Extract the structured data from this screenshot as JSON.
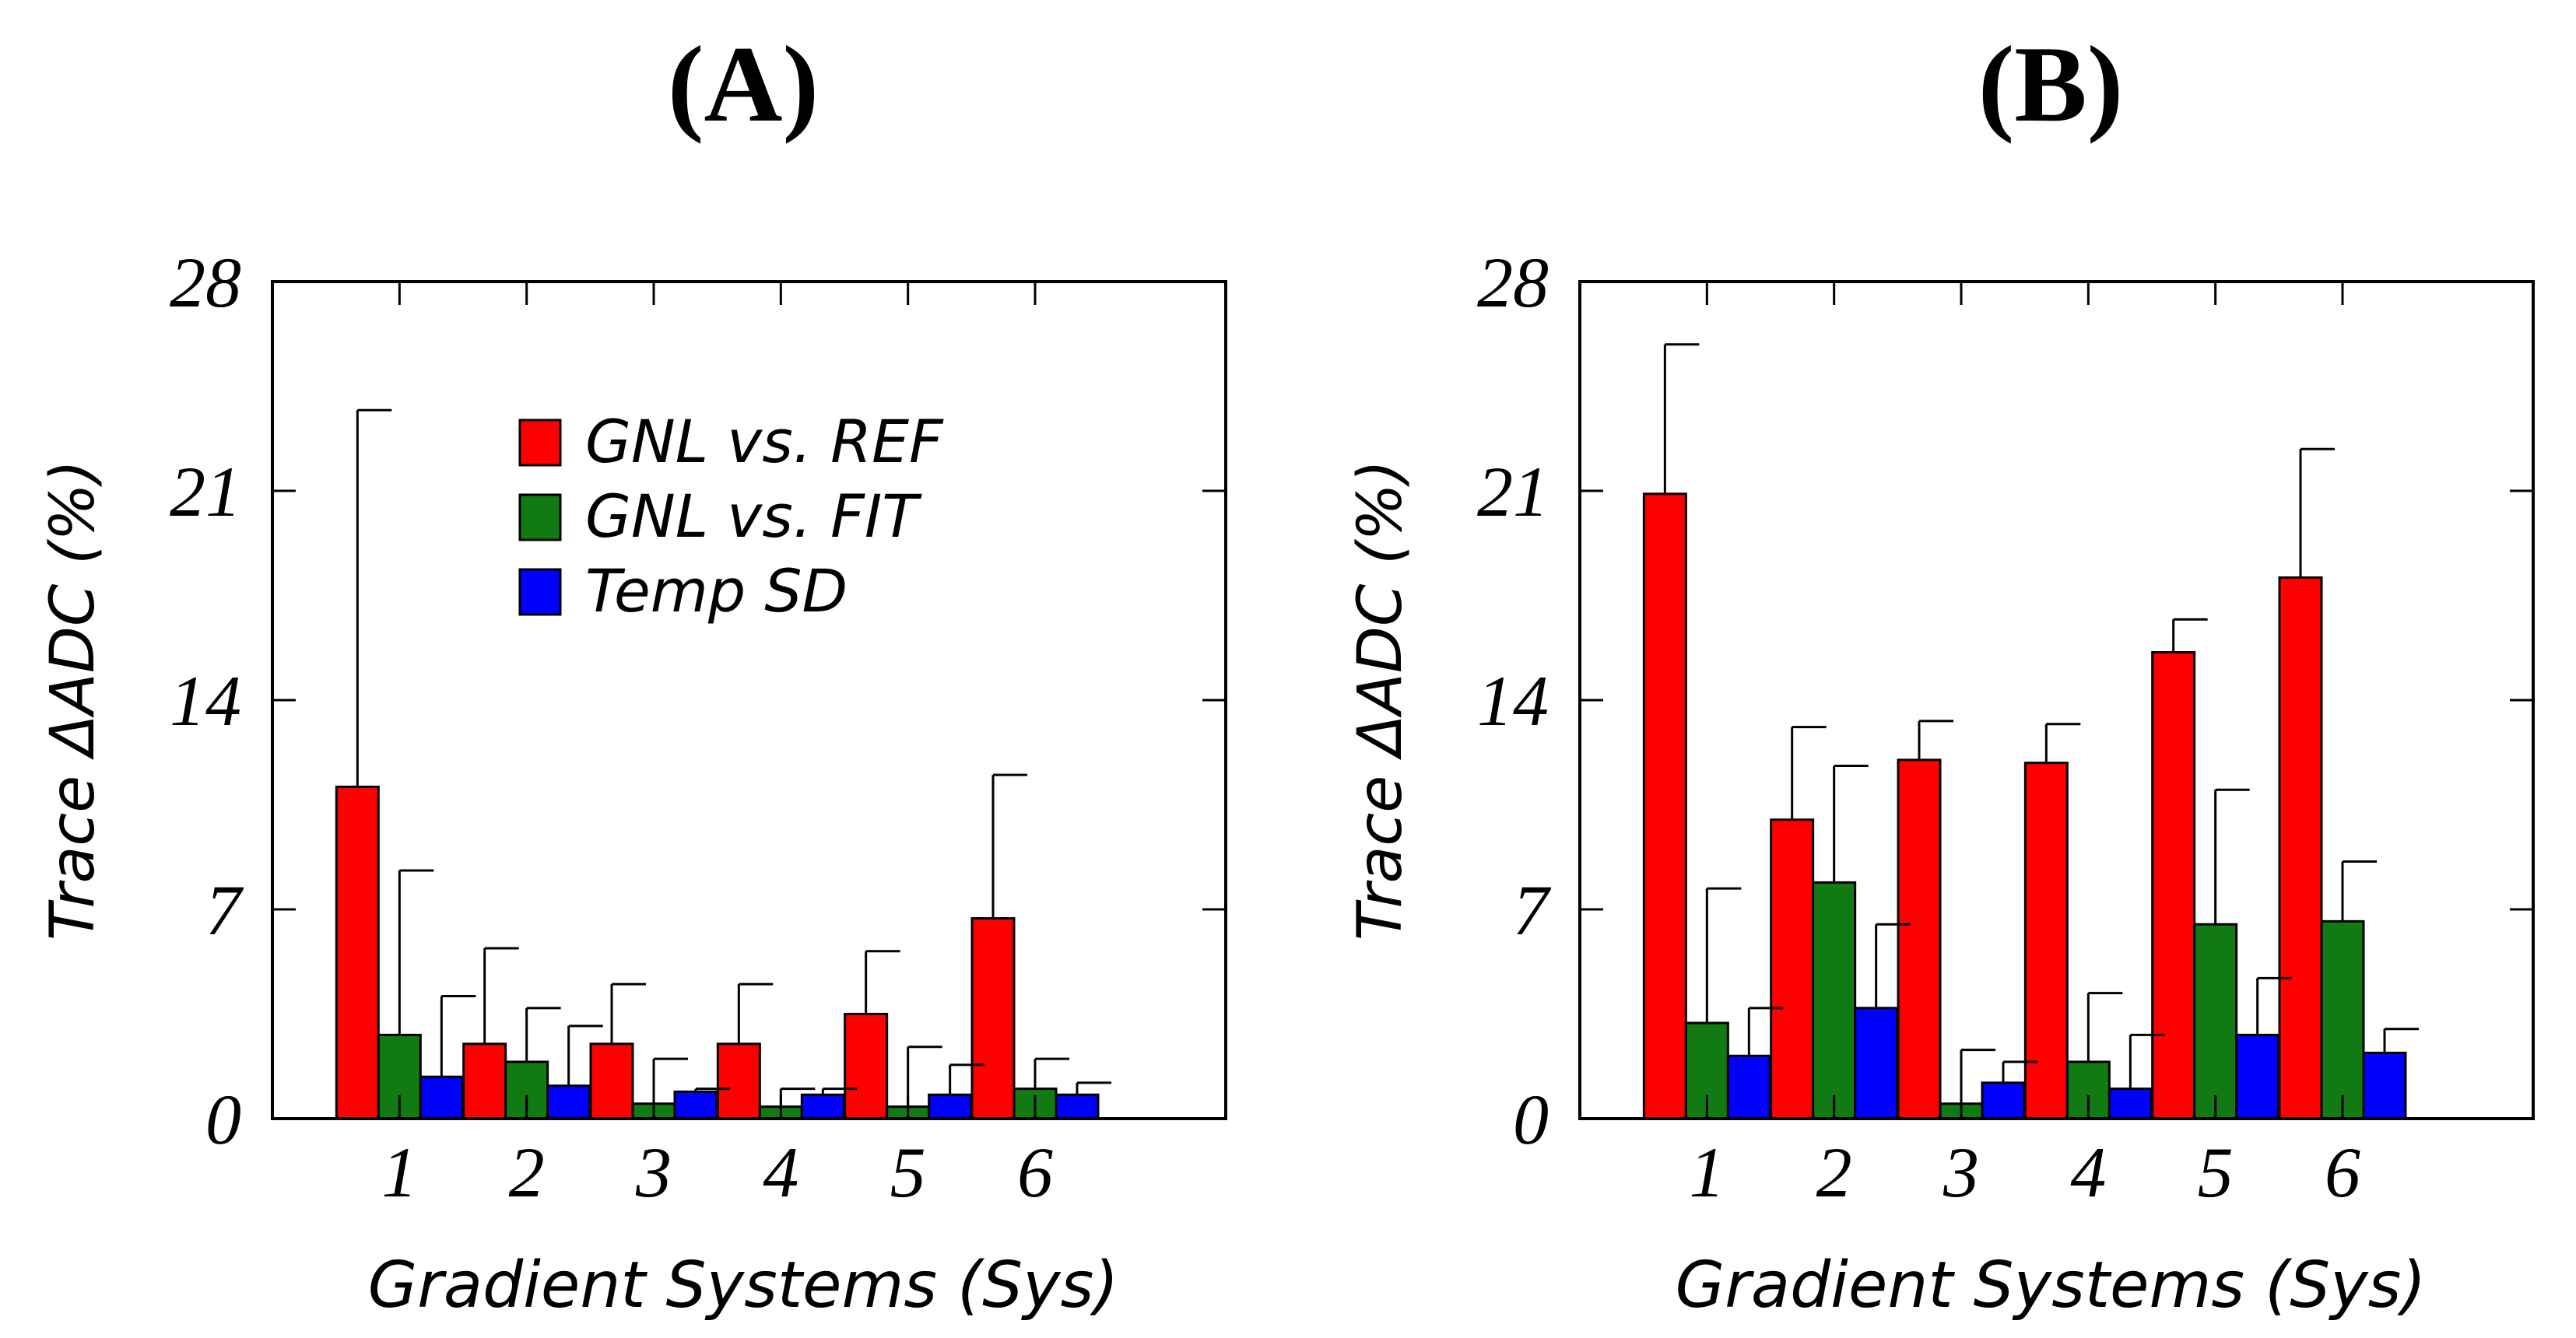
{
  "chart_data": [
    {
      "type": "bar",
      "title": "(A)",
      "xlabel": "Gradient Systems (Sys)",
      "ylabel": "Trace ΔADC (%)",
      "ylim": [
        0,
        28
      ],
      "yticks": [
        "0",
        "7",
        "14",
        "21",
        "28"
      ],
      "categories": [
        "1",
        "2",
        "3",
        "4",
        "5",
        "6"
      ],
      "legend_position": "top-right",
      "series": [
        {
          "name": "GNL vs. REF",
          "color": "#ff0000",
          "values": [
            11.1,
            2.5,
            2.5,
            2.5,
            3.5,
            6.7
          ],
          "errors": [
            12.6,
            3.2,
            2.0,
            2.0,
            2.1,
            4.8
          ]
        },
        {
          "name": "GNL vs. FIT",
          "color": "#127a12",
          "values": [
            2.8,
            1.9,
            0.5,
            0.4,
            0.4,
            1.0
          ],
          "errors": [
            5.5,
            1.8,
            1.5,
            0.6,
            2.0,
            1.0
          ]
        },
        {
          "name": "Temp SD",
          "color": "#0000ff",
          "values": [
            1.4,
            1.1,
            0.9,
            0.8,
            0.8,
            0.8
          ],
          "errors": [
            2.7,
            2.0,
            0.1,
            0.2,
            1.0,
            0.4
          ]
        }
      ]
    },
    {
      "type": "bar",
      "title": "(B)",
      "xlabel": "Gradient Systems (Sys)",
      "ylabel": "Trace ΔADC (%)",
      "ylim": [
        0,
        28
      ],
      "yticks": [
        "0",
        "7",
        "14",
        "21",
        "28"
      ],
      "categories": [
        "1",
        "2",
        "3",
        "4",
        "5",
        "6"
      ],
      "series": [
        {
          "name": "GNL vs. REF",
          "color": "#ff0000",
          "values": [
            20.9,
            10.0,
            12.0,
            11.9,
            15.6,
            18.1
          ],
          "errors": [
            5.0,
            3.1,
            1.3,
            1.3,
            1.1,
            4.3
          ]
        },
        {
          "name": "GNL vs. FIT",
          "color": "#127a12",
          "values": [
            3.2,
            7.9,
            0.5,
            1.9,
            6.5,
            6.6
          ],
          "errors": [
            4.5,
            3.9,
            1.8,
            2.3,
            4.5,
            2.0
          ]
        },
        {
          "name": "Temp SD",
          "color": "#0000ff",
          "values": [
            2.1,
            3.7,
            1.2,
            1.0,
            2.8,
            2.2
          ],
          "errors": [
            1.6,
            2.8,
            0.7,
            1.8,
            1.9,
            0.8
          ]
        }
      ]
    }
  ]
}
